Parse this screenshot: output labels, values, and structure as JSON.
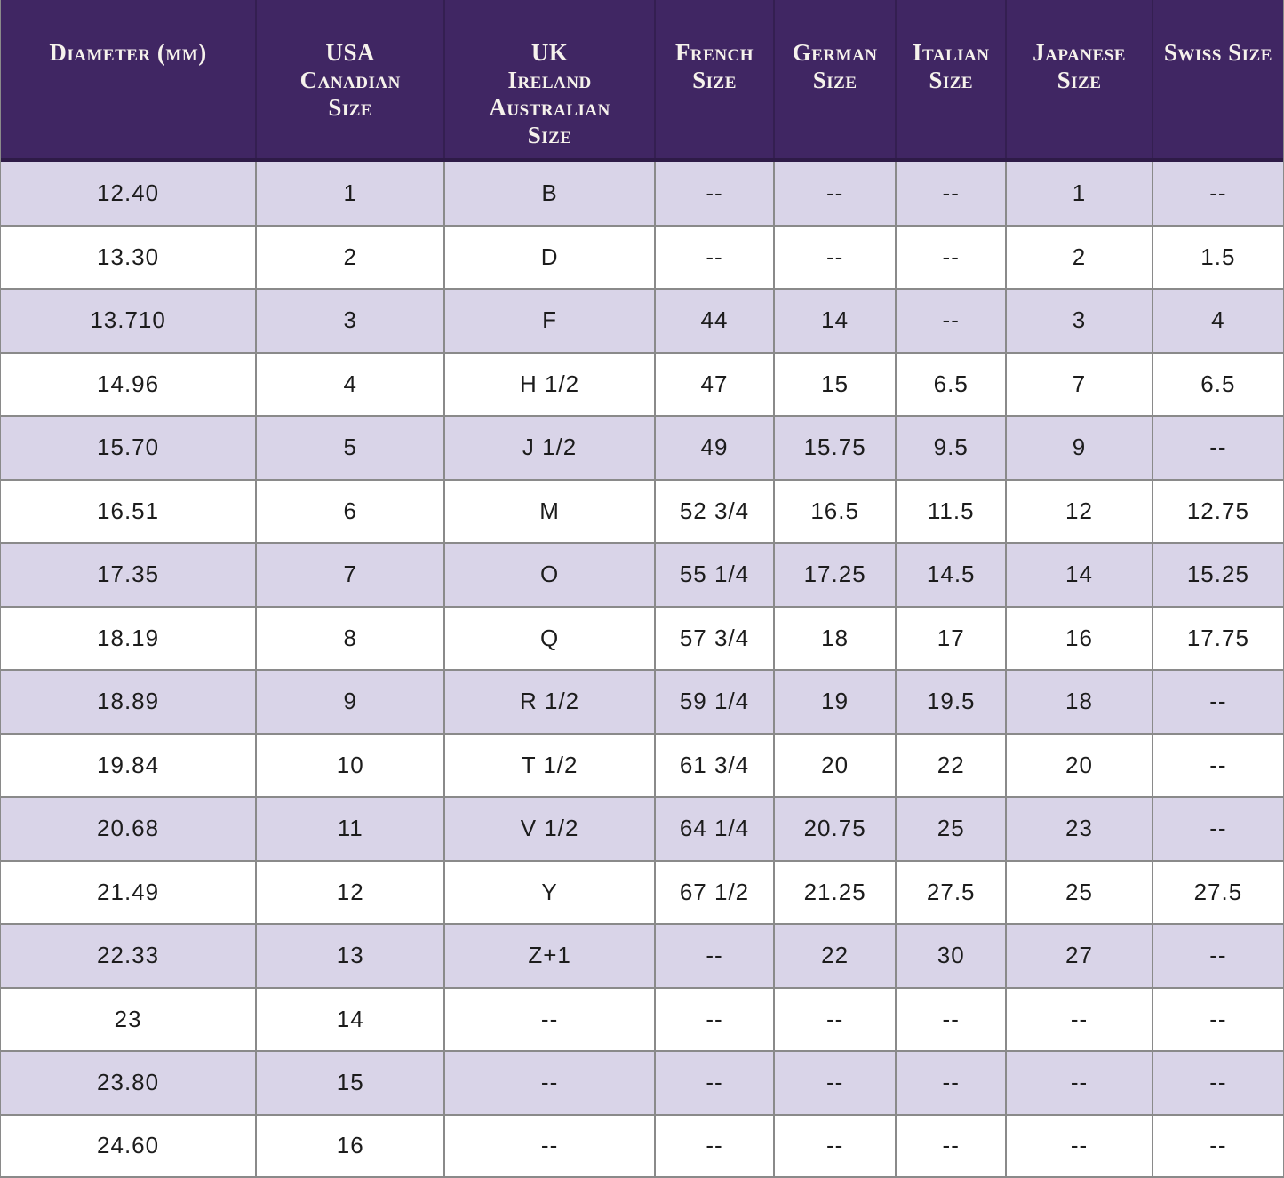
{
  "colors": {
    "header_bg": "#402663",
    "header_edge": "#2e1b47",
    "header_text": "#f6f2ec",
    "row_alt_bg": "#d9d4e8",
    "row_bg": "#ffffff",
    "cell_text": "#1c1c1c",
    "grid_line": "#8a8a8a"
  },
  "table": {
    "columns": [
      {
        "key": "diameter",
        "lines": [
          "Diameter (mm)"
        ]
      },
      {
        "key": "usa-canadian",
        "lines": [
          "USA",
          "Canadian",
          "Size"
        ]
      },
      {
        "key": "uk-ireland-australian",
        "lines": [
          "UK",
          "Ireland",
          "Australian",
          "Size"
        ]
      },
      {
        "key": "french",
        "lines": [
          "French",
          "Size"
        ]
      },
      {
        "key": "german",
        "lines": [
          "German",
          "Size"
        ]
      },
      {
        "key": "italian",
        "lines": [
          "Italian",
          "Size"
        ]
      },
      {
        "key": "japanese",
        "lines": [
          "Japanese Size"
        ]
      },
      {
        "key": "swiss",
        "lines": [
          "Swiss Size"
        ]
      }
    ],
    "rows": [
      [
        "12.40",
        "1",
        "B",
        "--",
        "--",
        "--",
        "1",
        "--"
      ],
      [
        "13.30",
        "2",
        "D",
        "--",
        "--",
        "--",
        "2",
        "1.5"
      ],
      [
        "13.710",
        "3",
        "F",
        "44",
        "14",
        "--",
        "3",
        "4"
      ],
      [
        "14.96",
        "4",
        "H 1/2",
        "47",
        "15",
        "6.5",
        "7",
        "6.5"
      ],
      [
        "15.70",
        "5",
        "J 1/2",
        "49",
        "15.75",
        "9.5",
        "9",
        "--"
      ],
      [
        "16.51",
        "6",
        "M",
        "52 3/4",
        "16.5",
        "11.5",
        "12",
        "12.75"
      ],
      [
        "17.35",
        "7",
        "O",
        "55 1/4",
        "17.25",
        "14.5",
        "14",
        "15.25"
      ],
      [
        "18.19",
        "8",
        "Q",
        "57 3/4",
        "18",
        "17",
        "16",
        "17.75"
      ],
      [
        "18.89",
        "9",
        "R 1/2",
        "59 1/4",
        "19",
        "19.5",
        "18",
        "--"
      ],
      [
        "19.84",
        "10",
        "T 1/2",
        "61 3/4",
        "20",
        "22",
        "20",
        "--"
      ],
      [
        "20.68",
        "11",
        "V 1/2",
        "64 1/4",
        "20.75",
        "25",
        "23",
        "--"
      ],
      [
        "21.49",
        "12",
        "Y",
        "67 1/2",
        "21.25",
        "27.5",
        "25",
        "27.5"
      ],
      [
        "22.33",
        "13",
        "Z+1",
        "--",
        "22",
        "30",
        "27",
        "--"
      ],
      [
        "23",
        "14",
        "--",
        "--",
        "--",
        "--",
        "--",
        "--"
      ],
      [
        "23.80",
        "15",
        "--",
        "--",
        "--",
        "--",
        "--",
        "--"
      ],
      [
        "24.60",
        "16",
        "--",
        "--",
        "--",
        "--",
        "--",
        "--"
      ]
    ]
  }
}
